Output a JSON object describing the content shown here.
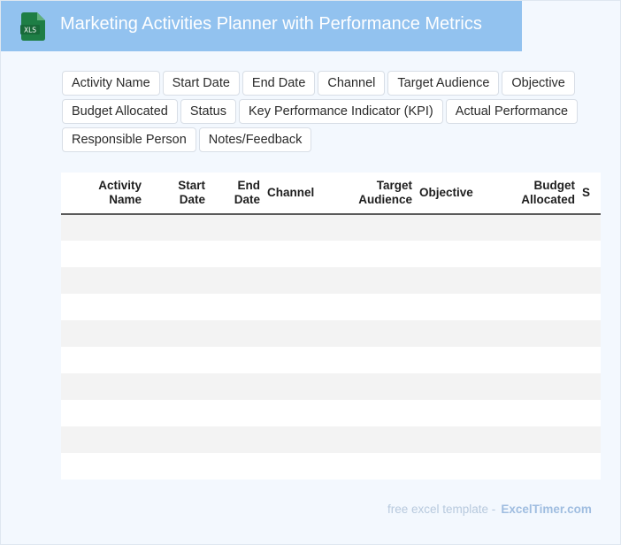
{
  "header": {
    "title": "Marketing Activities Planner with Performance Metrics",
    "icon": "xls-file-icon",
    "icon_text": "XLS",
    "bar_color": "#92c2ef",
    "icon_color": "#1e7e45"
  },
  "field_chips": [
    "Activity Name",
    "Start Date",
    "End Date",
    "Channel",
    "Target Audience",
    "Objective",
    "Budget Allocated",
    "Status",
    "Key Performance Indicator (KPI)",
    "Actual Performance",
    "Responsible Person",
    "Notes/Feedback"
  ],
  "table": {
    "headers": [
      {
        "line1": "Activity",
        "line2": "Name"
      },
      {
        "line1": "Start",
        "line2": "Date"
      },
      {
        "line1": "End",
        "line2": "Date"
      },
      {
        "line1": "Channel",
        "line2": ""
      },
      {
        "line1": "Target",
        "line2": "Audience"
      },
      {
        "line1": "Objective",
        "line2": ""
      },
      {
        "line1": "Budget",
        "line2": "Allocated"
      },
      {
        "line1": "S",
        "line2": ""
      }
    ],
    "row_count": 10
  },
  "footer": {
    "prefix": "free excel template -",
    "brand": "ExcelTimer.com"
  }
}
